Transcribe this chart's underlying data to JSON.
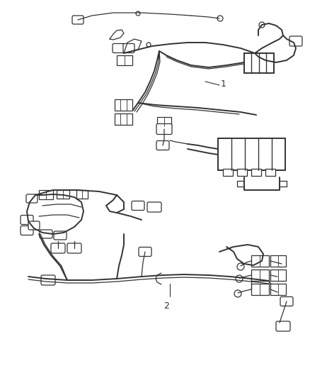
{
  "background_color": "#ffffff",
  "line_color": "#333333",
  "label_color": "#333333",
  "fig_width": 4.39,
  "fig_height": 5.33,
  "dpi": 100,
  "label_1": "1",
  "label_2": "2",
  "lw_main": 1.4,
  "lw_thin": 0.9,
  "lw_thick": 2.0
}
